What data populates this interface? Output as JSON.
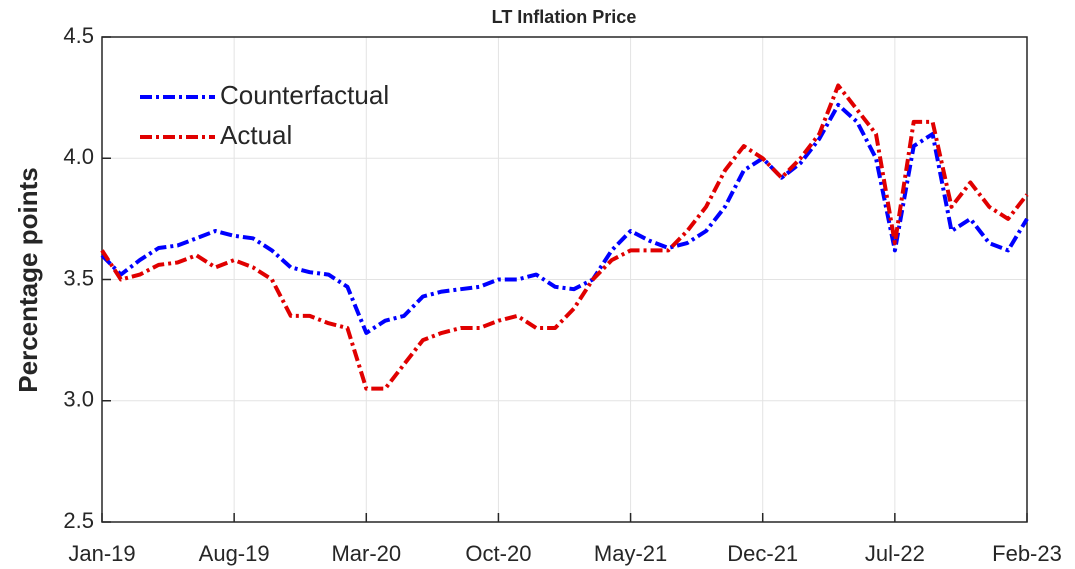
{
  "chart_data": {
    "type": "line",
    "title": "LT Inflation Price",
    "ylabel": "Percentage points",
    "x": [
      "2019-01",
      "2019-02",
      "2019-03",
      "2019-04",
      "2019-05",
      "2019-06",
      "2019-07",
      "2019-08",
      "2019-09",
      "2019-10",
      "2019-11",
      "2019-12",
      "2020-01",
      "2020-02",
      "2020-03",
      "2020-04",
      "2020-05",
      "2020-06",
      "2020-07",
      "2020-08",
      "2020-09",
      "2020-10",
      "2020-11",
      "2020-12",
      "2021-01",
      "2021-02",
      "2021-03",
      "2021-04",
      "2021-05",
      "2021-06",
      "2021-07",
      "2021-08",
      "2021-09",
      "2021-10",
      "2021-11",
      "2021-12",
      "2022-01",
      "2022-02",
      "2022-03",
      "2022-04",
      "2022-05",
      "2022-06",
      "2022-07",
      "2022-08",
      "2022-09",
      "2022-10",
      "2022-11",
      "2022-12",
      "2023-01",
      "2023-02"
    ],
    "series": [
      {
        "name": "Counterfactual",
        "color": "#0000ff",
        "values": [
          3.6,
          3.52,
          3.58,
          3.63,
          3.64,
          3.67,
          3.7,
          3.68,
          3.67,
          3.62,
          3.55,
          3.53,
          3.52,
          3.47,
          3.28,
          3.33,
          3.35,
          3.43,
          3.45,
          3.46,
          3.47,
          3.5,
          3.5,
          3.52,
          3.47,
          3.46,
          3.5,
          3.62,
          3.7,
          3.66,
          3.63,
          3.65,
          3.7,
          3.8,
          3.95,
          4.0,
          3.92,
          3.98,
          4.08,
          4.22,
          4.15,
          4.0,
          3.62,
          4.05,
          4.1,
          3.7,
          3.75,
          3.65,
          3.62,
          3.75
        ]
      },
      {
        "name": "Actual",
        "color": "#e00000",
        "values": [
          3.62,
          3.5,
          3.52,
          3.56,
          3.57,
          3.6,
          3.55,
          3.58,
          3.55,
          3.5,
          3.35,
          3.35,
          3.32,
          3.3,
          3.05,
          3.05,
          3.15,
          3.25,
          3.28,
          3.3,
          3.3,
          3.33,
          3.35,
          3.3,
          3.3,
          3.38,
          3.5,
          3.58,
          3.62,
          3.62,
          3.62,
          3.7,
          3.8,
          3.95,
          4.05,
          4.0,
          3.92,
          4.0,
          4.1,
          4.3,
          4.2,
          4.1,
          3.65,
          4.15,
          4.15,
          3.8,
          3.9,
          3.8,
          3.75,
          3.85
        ]
      }
    ],
    "xticks": [
      {
        "value": "2019-01",
        "label": "Jan-19"
      },
      {
        "value": "2019-08",
        "label": "Aug-19"
      },
      {
        "value": "2020-03",
        "label": "Mar-20"
      },
      {
        "value": "2020-10",
        "label": "Oct-20"
      },
      {
        "value": "2021-05",
        "label": "May-21"
      },
      {
        "value": "2021-12",
        "label": "Dec-21"
      },
      {
        "value": "2022-07",
        "label": "Jul-22"
      },
      {
        "value": "2023-02",
        "label": "Feb-23"
      }
    ],
    "xlim": [
      "2019-01",
      "2023-02"
    ],
    "ylim": [
      2.5,
      4.5
    ],
    "yticks": [
      2.5,
      {
        "value": 3,
        "label": "3.0"
      },
      3.5,
      {
        "value": 4,
        "label": "4.0"
      },
      4.5
    ],
    "grid": true,
    "legend": "upper left"
  }
}
